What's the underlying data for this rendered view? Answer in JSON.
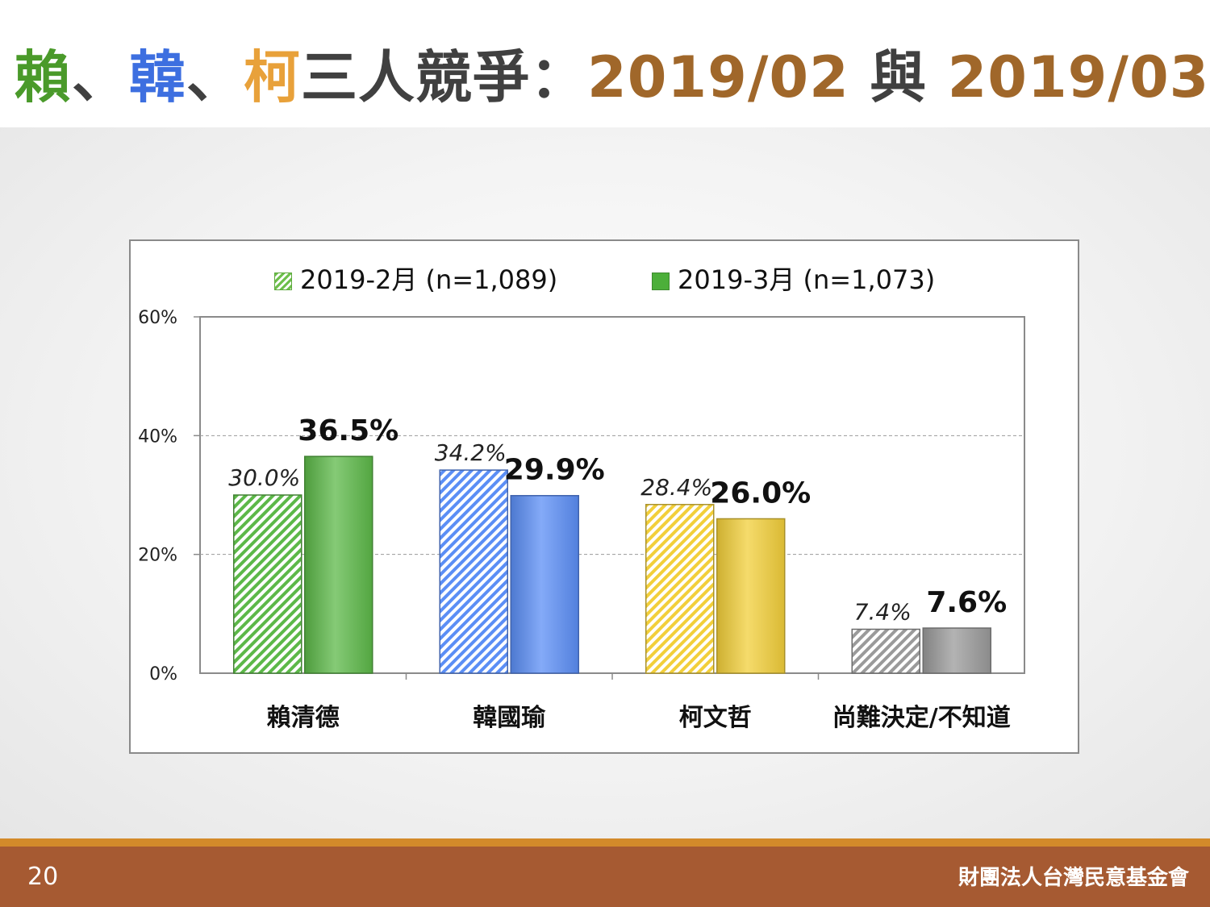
{
  "slide": {
    "title": {
      "lai": "賴",
      "sep1": "、",
      "han": "韓",
      "sep2": "、",
      "ko": "柯",
      "rest": "三人競爭：",
      "date1": "2019/02",
      "mid": " 與 ",
      "date2": "2019/03"
    },
    "colors": {
      "lai": "#4a9a2a",
      "han": "#3d6fe0",
      "ko": "#e8a13a",
      "rest": "#404040",
      "date": "#a0672a"
    },
    "page_number": "20",
    "organization": "財團法人台灣民意基金會"
  },
  "chart_data": {
    "type": "bar",
    "categories": [
      "賴清德",
      "韓國瑜",
      "柯文哲",
      "尚難決定/不知道"
    ],
    "series": [
      {
        "name": "2019-2月  (n=1,089)",
        "values": [
          30.0,
          34.2,
          28.4,
          7.4
        ],
        "labels": [
          "30.0%",
          "34.2%",
          "28.4%",
          "7.4%"
        ],
        "style": "hatched"
      },
      {
        "name": "2019-3月  (n=1,073)",
        "values": [
          36.5,
          29.9,
          26.0,
          7.6
        ],
        "labels": [
          "36.5%",
          "29.9%",
          "26.0%",
          "7.6%"
        ],
        "style": "solid"
      }
    ],
    "category_colors": [
      "#5cb848",
      "#5b8ef5",
      "#f2cf3a",
      "#9a9a9a"
    ],
    "ylim": [
      0,
      60
    ],
    "yticks": [
      "0%",
      "20%",
      "40%",
      "60%"
    ],
    "ytick_values": [
      0,
      20,
      40,
      60
    ],
    "grid": true,
    "legend": "top"
  }
}
